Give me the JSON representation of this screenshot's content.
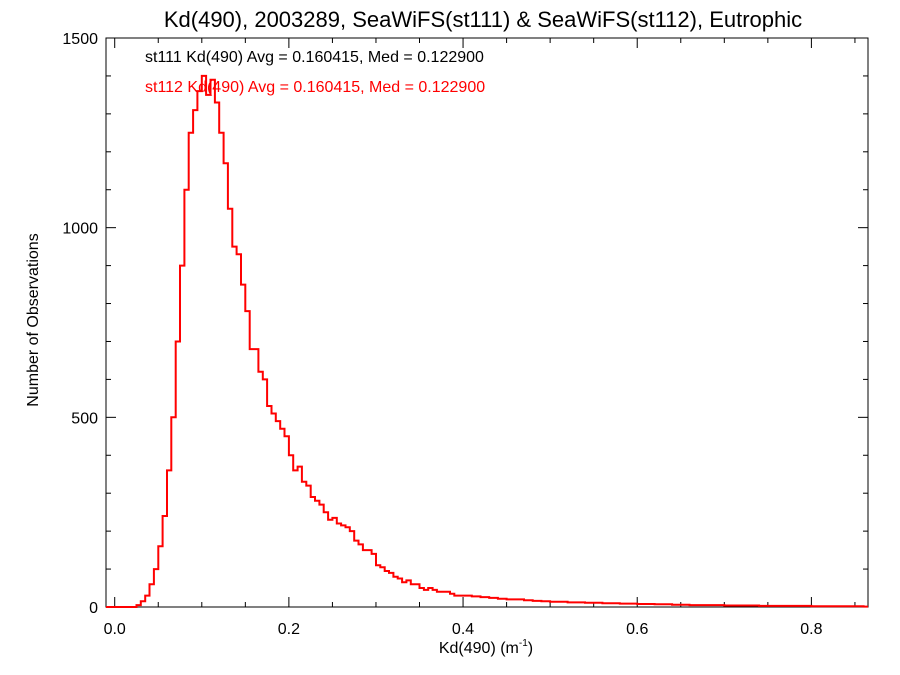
{
  "chart_data": {
    "type": "line",
    "title": "Kd(490), 2003289, SeaWiFS(st111) & SeaWiFS(st112), Eutrophic",
    "xlabel": "Kd(490) (m",
    "xlabel_superscript": "-1",
    "xlabel_suffix": ")",
    "ylabel": "Number of Observations",
    "xlim": [
      -0.01,
      0.865
    ],
    "ylim": [
      0,
      1500
    ],
    "xticks": [
      0.0,
      0.2,
      0.4,
      0.6,
      0.8
    ],
    "xtick_labels": [
      "0.0",
      "0.2",
      "0.4",
      "0.6",
      "0.8"
    ],
    "xminor_step": 0.05,
    "yticks": [
      0,
      500,
      1000,
      1500
    ],
    "ytick_labels": [
      "0",
      "500",
      "1000",
      "1500"
    ],
    "yminor_step": 100,
    "bin_width": 0.005,
    "grid": false,
    "annotations": [
      {
        "text": "st111 Kd(490) Avg = 0.160415, Med = 0.122900",
        "color": "#000000"
      },
      {
        "text": "st112 Kd(490) Avg = 0.160415, Med = 0.122900",
        "color": "#ff0000"
      }
    ],
    "series": [
      {
        "color": "#ff0000",
        "note_overlap": "st111 histogram identical and hidden beneath st112",
        "x": [
          -0.01,
          -0.005,
          0.0,
          0.005,
          0.01,
          0.015,
          0.02,
          0.025,
          0.03,
          0.035,
          0.04,
          0.045,
          0.05,
          0.055,
          0.06,
          0.065,
          0.07,
          0.075,
          0.08,
          0.085,
          0.09,
          0.095,
          0.1,
          0.105,
          0.11,
          0.115,
          0.12,
          0.125,
          0.13,
          0.135,
          0.14,
          0.145,
          0.15,
          0.155,
          0.16,
          0.165,
          0.17,
          0.175,
          0.18,
          0.185,
          0.19,
          0.195,
          0.2,
          0.205,
          0.21,
          0.215,
          0.22,
          0.225,
          0.23,
          0.235,
          0.24,
          0.245,
          0.25,
          0.255,
          0.26,
          0.265,
          0.27,
          0.275,
          0.28,
          0.285,
          0.29,
          0.295,
          0.3,
          0.305,
          0.31,
          0.315,
          0.32,
          0.325,
          0.33,
          0.335,
          0.34,
          0.345,
          0.35,
          0.355,
          0.36,
          0.365,
          0.37,
          0.375,
          0.38,
          0.385,
          0.39,
          0.395,
          0.4,
          0.41,
          0.42,
          0.43,
          0.44,
          0.45,
          0.46,
          0.47,
          0.48,
          0.49,
          0.5,
          0.52,
          0.54,
          0.56,
          0.58,
          0.6,
          0.62,
          0.64,
          0.66,
          0.68,
          0.7,
          0.72,
          0.74,
          0.76,
          0.78,
          0.8,
          0.82,
          0.84,
          0.86
        ],
        "values": [
          0,
          0,
          0,
          0,
          0,
          0,
          0,
          5,
          15,
          30,
          60,
          100,
          160,
          240,
          360,
          500,
          700,
          900,
          1100,
          1250,
          1310,
          1360,
          1400,
          1350,
          1390,
          1330,
          1250,
          1170,
          1050,
          950,
          930,
          850,
          780,
          680,
          680,
          620,
          600,
          530,
          510,
          490,
          470,
          450,
          400,
          360,
          370,
          330,
          320,
          290,
          280,
          270,
          250,
          230,
          235,
          220,
          215,
          210,
          200,
          175,
          165,
          150,
          150,
          140,
          110,
          105,
          95,
          90,
          80,
          75,
          65,
          70,
          60,
          60,
          50,
          45,
          50,
          45,
          40,
          40,
          40,
          35,
          30,
          30,
          30,
          28,
          26,
          24,
          22,
          20,
          20,
          18,
          16,
          15,
          14,
          12,
          11,
          10,
          9,
          8,
          7,
          6,
          5,
          5,
          4,
          4,
          3,
          3,
          3,
          2,
          2,
          2,
          1
        ]
      }
    ]
  }
}
